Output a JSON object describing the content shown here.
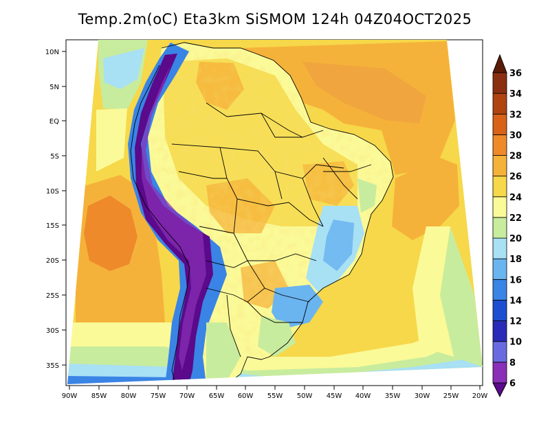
{
  "title": "Temp.2m(oC) Eta3km SiSMOM 124h 04Z04OCT2025",
  "axes": {
    "lat_labels": [
      "10N",
      "5N",
      "EQ",
      "5S",
      "10S",
      "15S",
      "20S",
      "25S",
      "30S",
      "35S"
    ],
    "lon_labels": [
      "90W",
      "85W",
      "80W",
      "75W",
      "70W",
      "65W",
      "60W",
      "55W",
      "50W",
      "45W",
      "40W",
      "35W",
      "30W",
      "25W",
      "20W"
    ]
  },
  "colorbar": {
    "unit": "oC",
    "labels": [
      "6",
      "8",
      "10",
      "12",
      "14",
      "16",
      "18",
      "20",
      "22",
      "24",
      "26",
      "28",
      "30",
      "32",
      "34",
      "36"
    ],
    "colors": [
      "#5a0a8a",
      "#8a2fb8",
      "#6a6ae0",
      "#2a2ab8",
      "#1c4fd0",
      "#3a84e6",
      "#6ab4f0",
      "#a8e0f4",
      "#c8ec9e",
      "#fbfa98",
      "#f6d84a",
      "#f5b23a",
      "#ee8a2a",
      "#d86218",
      "#b04410",
      "#8a3010",
      "#5a1c06"
    ],
    "extends": "both"
  },
  "map": {
    "projection": "polar stereographic (regional)",
    "field": "2 m temperature",
    "domain": {
      "lon_min": -90,
      "lon_max": -20,
      "lat_min": -37,
      "lat_max": 11
    }
  }
}
